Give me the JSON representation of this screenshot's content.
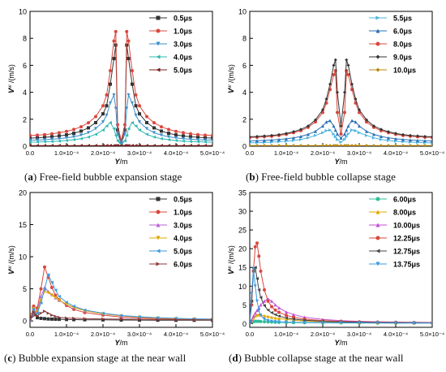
{
  "captions": [
    {
      "letter": "a",
      "text": "Free-field bubble expansion stage"
    },
    {
      "letter": "b",
      "text": "Free-field bubble collapse stage"
    },
    {
      "letter": "c",
      "text": "Bubble expansion stage at the near wall"
    },
    {
      "letter": "d",
      "text": "Bubble collapse stage at the near wall"
    }
  ],
  "x_tick_labels": [
    "0.0",
    "1.0×10⁻⁴",
    "2.0×10⁻⁴",
    "3.0×10⁻⁴",
    "4.0×10⁻⁴",
    "5.0×10⁻⁴"
  ],
  "chart_data": [
    {
      "type": "line",
      "ylabel_main": "V",
      "ylabel_sup": "w",
      "ylabel_unit": " /(m/s)",
      "xlabel_main": "Y",
      "xlabel_unit": "/m",
      "xlim": [
        0,
        0.0005
      ],
      "ylim": [
        0,
        10
      ],
      "yticks": [
        0,
        2,
        4,
        6,
        8,
        10
      ],
      "x": [
        0,
        2e-05,
        4e-05,
        6e-05,
        8e-05,
        0.0001,
        0.00012,
        0.00014,
        0.00016,
        0.00018,
        0.0002,
        0.00021,
        0.00022,
        0.00023,
        0.000235,
        0.00024,
        0.00025,
        0.00026,
        0.000265,
        0.00027,
        0.00028,
        0.00029,
        0.0003,
        0.00032,
        0.00034,
        0.00036,
        0.00038,
        0.0004,
        0.00042,
        0.00044,
        0.00046,
        0.00048,
        0.0005
      ],
      "series": [
        {
          "name": "0.5μs",
          "color": "#333333",
          "marker": "square",
          "values": [
            0.6,
            0.62,
            0.66,
            0.7,
            0.76,
            0.84,
            0.96,
            1.12,
            1.36,
            1.75,
            2.4,
            3.0,
            4.6,
            6.5,
            7.5,
            1.2,
            0.3,
            1.2,
            7.5,
            6.5,
            4.6,
            3.0,
            2.4,
            1.75,
            1.36,
            1.12,
            0.96,
            0.84,
            0.76,
            0.7,
            0.66,
            0.62,
            0.6
          ]
        },
        {
          "name": "1.0μs",
          "color": "#d9473d",
          "marker": "circle",
          "values": [
            0.8,
            0.82,
            0.86,
            0.92,
            1.0,
            1.1,
            1.24,
            1.44,
            1.74,
            2.2,
            3.0,
            3.8,
            5.6,
            7.8,
            8.5,
            1.6,
            0.4,
            1.6,
            8.5,
            7.8,
            5.6,
            3.8,
            3.0,
            2.2,
            1.74,
            1.44,
            1.24,
            1.1,
            1.0,
            0.92,
            0.86,
            0.82,
            0.8
          ]
        },
        {
          "name": "3.0μs",
          "color": "#3b8fc9",
          "marker": "triangle-down",
          "values": [
            0.45,
            0.46,
            0.48,
            0.52,
            0.56,
            0.62,
            0.7,
            0.82,
            1.0,
            1.3,
            1.8,
            2.3,
            3.2,
            3.8,
            2.8,
            0.9,
            0.2,
            0.9,
            2.8,
            3.8,
            3.2,
            2.3,
            1.8,
            1.3,
            1.0,
            0.82,
            0.7,
            0.62,
            0.56,
            0.52,
            0.48,
            0.46,
            0.45
          ]
        },
        {
          "name": "4.0μs",
          "color": "#2fb8b0",
          "marker": "triangle-left",
          "values": [
            0.3,
            0.31,
            0.33,
            0.35,
            0.38,
            0.42,
            0.48,
            0.56,
            0.68,
            0.88,
            1.2,
            1.5,
            1.75,
            1.3,
            0.8,
            0.4,
            0.1,
            0.4,
            0.8,
            1.3,
            1.75,
            1.5,
            1.2,
            0.88,
            0.68,
            0.56,
            0.48,
            0.42,
            0.38,
            0.35,
            0.33,
            0.31,
            0.3
          ]
        },
        {
          "name": "5.0μs",
          "color": "#7a1d1d",
          "marker": "triangle-left",
          "values": [
            0.05,
            0.05,
            0.05,
            0.05,
            0.05,
            0.05,
            0.05,
            0.05,
            0.05,
            0.05,
            0.05,
            0.05,
            0.05,
            0.05,
            0.05,
            0.05,
            0.05,
            0.05,
            0.05,
            0.05,
            0.05,
            0.05,
            0.05,
            0.05,
            0.05,
            0.05,
            0.05,
            0.05,
            0.05,
            0.05,
            0.05,
            0.05,
            0.05
          ]
        }
      ]
    },
    {
      "type": "line",
      "ylabel_main": "V",
      "ylabel_sup": "w",
      "ylabel_unit": " /(m/s)",
      "xlabel_main": "Y",
      "xlabel_unit": "/m",
      "xlim": [
        0,
        0.0005
      ],
      "ylim": [
        0,
        10
      ],
      "yticks": [
        0,
        2,
        4,
        6,
        8,
        10
      ],
      "x": [
        0,
        2e-05,
        4e-05,
        6e-05,
        8e-05,
        0.0001,
        0.00012,
        0.00014,
        0.00016,
        0.00018,
        0.0002,
        0.00021,
        0.00022,
        0.00023,
        0.000235,
        0.00024,
        0.00025,
        0.00026,
        0.000265,
        0.00027,
        0.00028,
        0.00029,
        0.0003,
        0.00032,
        0.00034,
        0.00036,
        0.00038,
        0.0004,
        0.00042,
        0.00044,
        0.00046,
        0.00048,
        0.0005
      ],
      "series": [
        {
          "name": "5.5μs",
          "color": "#4cb4e0",
          "marker": "triangle-right",
          "values": [
            0.25,
            0.26,
            0.28,
            0.3,
            0.33,
            0.37,
            0.42,
            0.5,
            0.62,
            0.8,
            1.0,
            1.15,
            1.2,
            0.9,
            0.7,
            0.5,
            0.3,
            0.5,
            0.7,
            0.9,
            1.2,
            1.15,
            1.0,
            0.8,
            0.62,
            0.5,
            0.42,
            0.37,
            0.33,
            0.3,
            0.28,
            0.26,
            0.25
          ]
        },
        {
          "name": "6.0μs",
          "color": "#2a6fb5",
          "marker": "triangle-up",
          "values": [
            0.4,
            0.41,
            0.43,
            0.46,
            0.5,
            0.55,
            0.62,
            0.72,
            0.88,
            1.1,
            1.5,
            1.8,
            1.9,
            1.5,
            1.2,
            0.9,
            0.6,
            0.9,
            1.2,
            1.5,
            1.9,
            1.8,
            1.5,
            1.1,
            0.88,
            0.72,
            0.62,
            0.55,
            0.5,
            0.46,
            0.43,
            0.41,
            0.4
          ]
        },
        {
          "name": "8.0μs",
          "color": "#d9473d",
          "marker": "circle",
          "values": [
            0.65,
            0.66,
            0.7,
            0.74,
            0.8,
            0.88,
            1.0,
            1.15,
            1.4,
            1.8,
            2.5,
            3.2,
            4.2,
            5.3,
            5.6,
            2.5,
            0.9,
            2.5,
            5.6,
            5.3,
            4.2,
            3.2,
            2.5,
            1.8,
            1.4,
            1.15,
            1.0,
            0.88,
            0.8,
            0.74,
            0.7,
            0.66,
            0.65
          ]
        },
        {
          "name": "9.0μs",
          "color": "#333333",
          "marker": "diamond",
          "values": [
            0.7,
            0.72,
            0.76,
            0.8,
            0.86,
            0.95,
            1.08,
            1.25,
            1.5,
            1.95,
            2.7,
            3.5,
            4.6,
            6.0,
            6.4,
            4.0,
            1.5,
            4.0,
            6.4,
            6.0,
            4.6,
            3.5,
            2.7,
            1.95,
            1.5,
            1.25,
            1.08,
            0.95,
            0.86,
            0.8,
            0.76,
            0.72,
            0.7
          ]
        },
        {
          "name": "10.0μs",
          "color": "#b8860b",
          "marker": "diamond",
          "values": [
            0.05,
            0.05,
            0.05,
            0.05,
            0.05,
            0.05,
            0.05,
            0.05,
            0.05,
            0.05,
            0.05,
            0.05,
            0.05,
            0.05,
            0.05,
            0.05,
            0.05,
            0.05,
            0.05,
            0.05,
            0.05,
            0.05,
            0.05,
            0.05,
            0.05,
            0.05,
            0.05,
            0.05,
            0.05,
            0.05,
            0.05,
            0.05,
            0.05
          ]
        }
      ]
    },
    {
      "type": "line",
      "ylabel_main": "V",
      "ylabel_sup": "w",
      "ylabel_unit": " /(m/s)",
      "xlabel_main": "Y",
      "xlabel_unit": "/m",
      "xlim": [
        0,
        0.0005
      ],
      "ylim": [
        -1,
        20
      ],
      "yticks": [
        0,
        5,
        10,
        15,
        20
      ],
      "x": [
        0,
        5e-06,
        1e-05,
        1.5e-05,
        2e-05,
        3e-05,
        4e-05,
        5e-05,
        6e-05,
        7e-05,
        8e-05,
        0.0001,
        0.00012,
        0.00015,
        0.0002,
        0.00025,
        0.0003,
        0.00035,
        0.0004,
        0.00045,
        0.0005
      ],
      "series": [
        {
          "name": "0.5μs",
          "color": "#333333",
          "marker": "square",
          "values": [
            0.1,
            0.8,
            2.0,
            1.0,
            0.5,
            0.4,
            0.35,
            0.3,
            0.28,
            0.26,
            0.25,
            0.22,
            0.2,
            0.18,
            0.16,
            0.14,
            0.12,
            0.11,
            0.1,
            0.1,
            0.1
          ]
        },
        {
          "name": "1.0μs",
          "color": "#d9473d",
          "marker": "circle",
          "values": [
            0.1,
            1.0,
            2.3,
            1.2,
            2.0,
            5.0,
            8.4,
            6.8,
            5.2,
            4.0,
            3.3,
            2.4,
            1.8,
            1.3,
            0.9,
            0.6,
            0.45,
            0.35,
            0.3,
            0.25,
            0.2
          ]
        },
        {
          "name": "3.0μs",
          "color": "#b565d6",
          "marker": "triangle-up",
          "values": [
            0.1,
            0.9,
            2.1,
            1.1,
            1.6,
            3.8,
            5.2,
            4.6,
            4.1,
            3.6,
            3.2,
            2.6,
            2.1,
            1.6,
            1.1,
            0.8,
            0.6,
            0.45,
            0.35,
            0.3,
            0.25
          ]
        },
        {
          "name": "4.0μs",
          "color": "#e0a800",
          "marker": "triangle-down",
          "values": [
            0.1,
            0.8,
            1.9,
            1.0,
            1.4,
            3.2,
            4.6,
            4.4,
            4.0,
            3.6,
            3.2,
            2.6,
            2.1,
            1.6,
            1.1,
            0.8,
            0.6,
            0.45,
            0.35,
            0.3,
            0.25
          ]
        },
        {
          "name": "5.0μs",
          "color": "#3b9be0",
          "marker": "triangle-left",
          "values": [
            0.1,
            0.8,
            1.8,
            1.0,
            1.2,
            2.8,
            5.0,
            7.2,
            6.0,
            4.8,
            3.8,
            2.9,
            2.3,
            1.7,
            1.2,
            0.85,
            0.65,
            0.5,
            0.4,
            0.32,
            0.28
          ]
        },
        {
          "name": "6.0μs",
          "color": "#8b3a3a",
          "marker": "triangle-right",
          "values": [
            0.1,
            0.6,
            1.4,
            0.9,
            0.8,
            1.2,
            1.5,
            1.2,
            0.9,
            0.7,
            0.55,
            0.45,
            0.4,
            0.35,
            0.3,
            0.28,
            0.25,
            0.22,
            0.2,
            0.18,
            0.18
          ]
        }
      ]
    },
    {
      "type": "line",
      "ylabel_main": "V",
      "ylabel_sup": "w",
      "ylabel_unit": " /(m/s)",
      "xlabel_main": "Y",
      "xlabel_unit": "/m",
      "xlim": [
        0,
        0.0005
      ],
      "ylim": [
        -1,
        35
      ],
      "yticks": [
        0,
        5,
        10,
        15,
        20,
        25,
        30,
        35
      ],
      "x": [
        0,
        5e-06,
        1e-05,
        1.5e-05,
        2e-05,
        2.5e-05,
        3e-05,
        4e-05,
        5e-05,
        6e-05,
        7e-05,
        8e-05,
        0.0001,
        0.00012,
        0.00015,
        0.0002,
        0.00025,
        0.0003,
        0.00035,
        0.0004,
        0.00045,
        0.0005
      ],
      "series": [
        {
          "name": "6.00μs",
          "color": "#2fbf9a",
          "marker": "circle",
          "values": [
            0.2,
            0.4,
            0.5,
            0.6,
            0.6,
            0.6,
            0.55,
            0.5,
            0.45,
            0.4,
            0.35,
            0.32,
            0.28,
            0.25,
            0.22,
            0.2,
            0.18,
            0.16,
            0.15,
            0.14,
            0.13,
            0.12
          ]
        },
        {
          "name": "8.00μs",
          "color": "#e0a800",
          "marker": "triangle-up",
          "values": [
            0.3,
            0.8,
            1.5,
            2.0,
            2.3,
            2.4,
            2.3,
            2.1,
            1.9,
            1.7,
            1.5,
            1.35,
            1.1,
            0.9,
            0.7,
            0.5,
            0.4,
            0.32,
            0.28,
            0.25,
            0.22,
            0.2
          ]
        },
        {
          "name": "10.00μs",
          "color": "#c44fd6",
          "marker": "triangle-up",
          "values": [
            0.3,
            1.0,
            2.0,
            2.8,
            3.5,
            4.2,
            5.0,
            6.0,
            6.6,
            6.0,
            5.0,
            4.2,
            3.1,
            2.4,
            1.7,
            1.1,
            0.8,
            0.6,
            0.48,
            0.4,
            0.34,
            0.3
          ]
        },
        {
          "name": "12.25μs",
          "color": "#d9473d",
          "marker": "circle",
          "values": [
            0.5,
            5.0,
            14.0,
            20.5,
            21.5,
            18.0,
            14.0,
            9.0,
            6.0,
            4.5,
            3.6,
            3.0,
            2.2,
            1.7,
            1.2,
            0.8,
            0.6,
            0.45,
            0.38,
            0.32,
            0.28,
            0.25
          ]
        },
        {
          "name": "12.75μs",
          "color": "#444444",
          "marker": "triangle-left",
          "values": [
            0.5,
            6.0,
            14.0,
            15.0,
            12.0,
            9.0,
            7.0,
            4.8,
            3.6,
            2.9,
            2.4,
            2.0,
            1.5,
            1.2,
            0.9,
            0.6,
            0.45,
            0.35,
            0.3,
            0.26,
            0.22,
            0.2
          ]
        },
        {
          "name": "13.75μs",
          "color": "#3b9be0",
          "marker": "triangle-down",
          "values": [
            0.3,
            8.0,
            14.5,
            10.0,
            6.0,
            3.5,
            2.2,
            1.2,
            0.8,
            0.6,
            0.5,
            0.45,
            0.4,
            0.35,
            0.3,
            0.25,
            0.22,
            0.2,
            0.18,
            0.16,
            0.15,
            0.14
          ]
        }
      ]
    }
  ]
}
